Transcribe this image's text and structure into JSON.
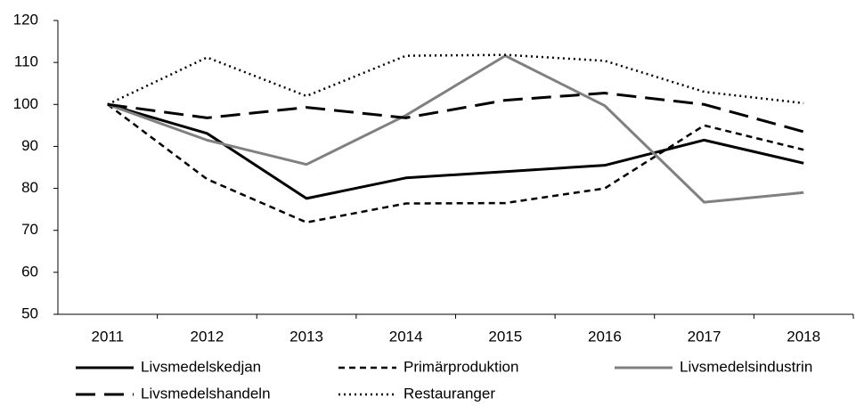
{
  "chart_data": {
    "type": "line",
    "categories": [
      "2011",
      "2012",
      "2013",
      "2014",
      "2015",
      "2016",
      "2017",
      "2018"
    ],
    "series": [
      {
        "name": "Livsmedelskedjan",
        "color": "#000000",
        "values": [
          100,
          93.1,
          77.6,
          82.5,
          84,
          85.5,
          91.5,
          86
        ]
      },
      {
        "name": "Primärproduktion",
        "color": "#000000",
        "values": [
          100,
          82.2,
          71.9,
          76.4,
          76.5,
          80,
          95,
          89.2
        ]
      },
      {
        "name": "Livsmedelsindustrin",
        "color": "#808080",
        "values": [
          100,
          91.5,
          85.7,
          97.4,
          111.6,
          99.7,
          76.7,
          79
        ]
      },
      {
        "name": "Livsmedelshandeln",
        "color": "#000000",
        "values": [
          100,
          96.8,
          99.3,
          96.8,
          101,
          102.7,
          100,
          93.5
        ]
      },
      {
        "name": "Restauranger",
        "color": "#000000",
        "values": [
          100,
          111.2,
          102,
          111.6,
          111.8,
          110.4,
          103,
          100.3
        ]
      }
    ],
    "ylim": [
      50,
      120
    ],
    "yticks": [
      50,
      60,
      70,
      80,
      90,
      100,
      110,
      120
    ],
    "grid": false,
    "legend": "bottom"
  }
}
